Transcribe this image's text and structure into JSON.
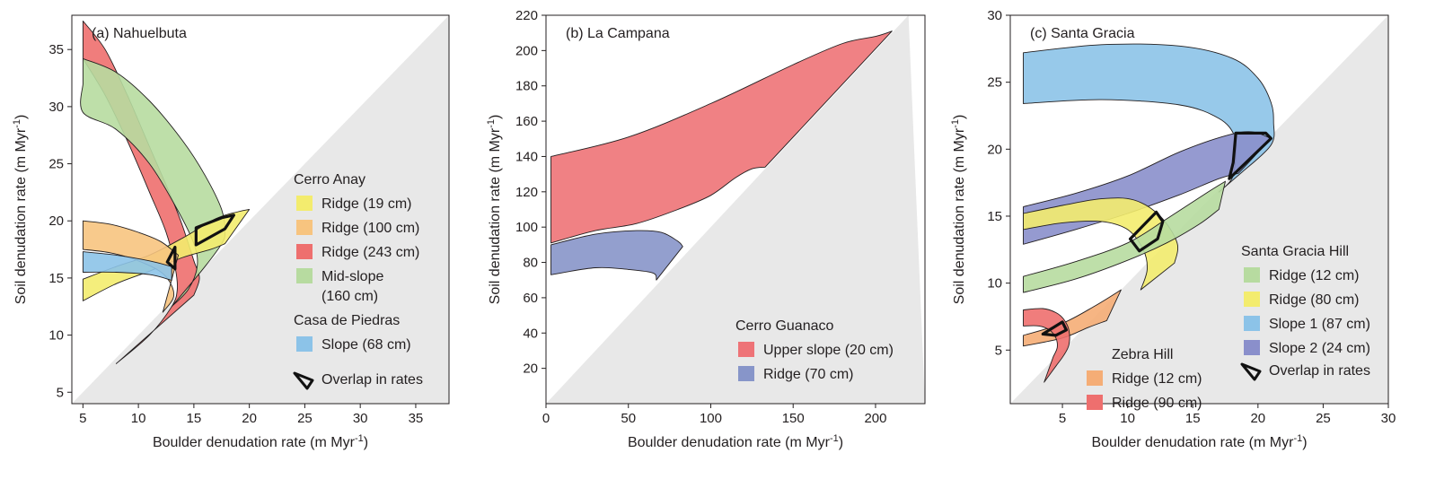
{
  "chart_data": [
    {
      "type": "area",
      "title": "(a) Nahuelbuta",
      "xlabel": "Boulder denudation rate (m Myr⁻¹)",
      "ylabel": "Soil denudation rate (m Myr⁻¹)",
      "xlim": [
        4,
        38
      ],
      "ylim": [
        4,
        38
      ],
      "xticks": [
        5,
        10,
        15,
        20,
        25,
        30,
        35
      ],
      "yticks": [
        5,
        10,
        15,
        20,
        25,
        30,
        35
      ],
      "legend_groups": [
        {
          "heading": "Cerro Anay",
          "items": [
            {
              "label": "Ridge (19 cm)",
              "color": "#f3ec6e"
            },
            {
              "label": "Ridge (100 cm)",
              "color": "#f7c47f"
            },
            {
              "label": "Ridge (243 cm)",
              "color": "#ee6f6e"
            },
            {
              "label": "Mid-slope",
              "label2": "(160 cm)",
              "color": "#b7dba0"
            }
          ]
        },
        {
          "heading": "Casa de Piedras",
          "items": [
            {
              "label": "Slope (68 cm)",
              "color": "#8cc3e8"
            }
          ]
        }
      ],
      "overlap_label": "Overlap in rates",
      "regions": [
        {
          "name": "Ridge (243 cm)",
          "color": "#ee6f6e",
          "upper": [
            [
              5,
              37.5
            ],
            [
              7,
              35
            ],
            [
              9,
              31
            ],
            [
              11,
              26.5
            ],
            [
              13,
              22
            ],
            [
              14,
              19.5
            ],
            [
              15,
              16.5
            ],
            [
              15.5,
              15
            ],
            [
              15,
              13.5
            ]
          ],
          "lower": [
            [
              5,
              34.2
            ],
            [
              7,
              31
            ],
            [
              9,
              27
            ],
            [
              11,
              22.5
            ],
            [
              12.5,
              19
            ],
            [
              13.3,
              16
            ],
            [
              13.5,
              14
            ],
            [
              13,
              12.5
            ],
            [
              11,
              10
            ],
            [
              8,
              7.5
            ]
          ]
        },
        {
          "name": "Mid-slope (160 cm)",
          "color": "#b7dba0",
          "upper": [
            [
              5,
              34.2
            ],
            [
              8,
              33
            ],
            [
              11,
              30.5
            ],
            [
              14,
              27
            ],
            [
              16,
              24
            ],
            [
              17.5,
              21
            ],
            [
              17.8,
              19
            ],
            [
              17.5,
              18
            ],
            [
              16,
              16
            ],
            [
              13,
              12.5
            ]
          ],
          "lower": [
            [
              5,
              32
            ],
            [
              5,
              29.5
            ],
            [
              8,
              28
            ],
            [
              11,
              25
            ],
            [
              13.5,
              21
            ],
            [
              15,
              18
            ],
            [
              15.3,
              16
            ],
            [
              14.5,
              14
            ],
            [
              13,
              12.5
            ]
          ]
        },
        {
          "name": "Ridge (19 cm)",
          "color": "#f3ec6e",
          "upper": [
            [
              5,
              14.9
            ],
            [
              8,
              16
            ],
            [
              11,
              17
            ],
            [
              14,
              18.5
            ],
            [
              17,
              20.2
            ],
            [
              19,
              20.8
            ],
            [
              20,
              21
            ]
          ],
          "lower": [
            [
              5,
              13
            ],
            [
              8,
              14.5
            ],
            [
              11,
              15.6
            ],
            [
              14,
              16.8
            ],
            [
              16.5,
              17.5
            ],
            [
              17.8,
              18
            ]
          ]
        },
        {
          "name": "Ridge (100 cm)",
          "color": "#f7c47f",
          "upper": [
            [
              5,
              20
            ],
            [
              7.5,
              19.7
            ],
            [
              10,
              19
            ],
            [
              12,
              18.2
            ],
            [
              13.6,
              17
            ]
          ],
          "lower": [
            [
              5,
              17.5
            ],
            [
              7.5,
              17.2
            ],
            [
              10,
              16.5
            ],
            [
              12.3,
              15.3
            ],
            [
              13.2,
              13.5
            ],
            [
              12.2,
              12
            ]
          ]
        },
        {
          "name": "Slope (68 cm)",
          "color": "#8cc3e8",
          "upper": [
            [
              5,
              17.3
            ],
            [
              8,
              17
            ],
            [
              11,
              16.5
            ],
            [
              13,
              16
            ]
          ],
          "lower": [
            [
              5,
              15.5
            ],
            [
              8,
              15.5
            ],
            [
              11,
              15.3
            ],
            [
              13,
              14.8
            ]
          ]
        }
      ],
      "overlaps": [
        [
          [
            15.2,
            17.9
          ],
          [
            17.8,
            19.3
          ],
          [
            18.6,
            20.5
          ],
          [
            17.6,
            20.3
          ],
          [
            15.2,
            19.4
          ]
        ],
        [
          [
            12.6,
            16.4
          ],
          [
            13.3,
            17.7
          ],
          [
            13.3,
            15.8
          ]
        ]
      ]
    },
    {
      "type": "area",
      "title": "(b) La Campana",
      "xlabel": "Boulder denudation rate (m Myr⁻¹)",
      "ylabel": "Soil denudation rate (m Myr⁻¹)",
      "xlim": [
        0,
        230
      ],
      "ylim": [
        0,
        220
      ],
      "xticks": [
        0,
        50,
        100,
        150,
        200
      ],
      "yticks": [
        20,
        40,
        60,
        80,
        100,
        120,
        140,
        160,
        180,
        200,
        220
      ],
      "legend_groups": [
        {
          "heading": "Cerro Guanaco",
          "items": [
            {
              "label": "Upper slope (20 cm)",
              "color": "#ee7377"
            },
            {
              "label": "Ridge (70 cm)",
              "color": "#8795c9"
            }
          ]
        }
      ],
      "regions": [
        {
          "name": "Upper slope (20 cm)",
          "color": "#ee7377",
          "upper": [
            [
              3,
              140
            ],
            [
              50,
              151
            ],
            [
              100,
              170
            ],
            [
              150,
              192
            ],
            [
              180,
              204
            ],
            [
              200,
              208
            ],
            [
              210,
              211
            ]
          ],
          "lower": [
            [
              3,
              91
            ],
            [
              30,
              98
            ],
            [
              55,
              102
            ],
            [
              80,
              110
            ],
            [
              100,
              118
            ],
            [
              115,
              128
            ],
            [
              125,
              133
            ],
            [
              133,
              134
            ]
          ]
        },
        {
          "name": "Ridge (70 cm)",
          "color": "#8795c9",
          "upper": [
            [
              3,
              90
            ],
            [
              30,
              96
            ],
            [
              55,
              98
            ],
            [
              70,
              97
            ],
            [
              80,
              92
            ],
            [
              83,
              89
            ]
          ],
          "lower": [
            [
              3,
              73
            ],
            [
              30,
              77
            ],
            [
              50,
              76
            ],
            [
              65,
              74
            ],
            [
              67,
              70
            ]
          ]
        }
      ]
    },
    {
      "type": "area",
      "title": "(c) Santa Gracia",
      "xlabel": "Boulder denudation rate (m Myr⁻¹)",
      "ylabel": "Soil denudation rate (m Myr⁻¹)",
      "xlim": [
        1,
        30
      ],
      "ylim": [
        1,
        30
      ],
      "xticks": [
        5,
        10,
        15,
        20,
        25,
        30
      ],
      "yticks": [
        5,
        10,
        15,
        20,
        25,
        30
      ],
      "legend_groups": [
        {
          "heading": "Zebra Hill",
          "items": [
            {
              "label": "Ridge (12 cm)",
              "color": "#f5ad76"
            },
            {
              "label": "Ridge (90 cm)",
              "color": "#ee6f6e"
            }
          ]
        },
        {
          "heading": "Santa Gracia Hill",
          "items": [
            {
              "label": "Ridge (12 cm)",
              "color": "#b7dba0"
            },
            {
              "label": "Ridge (80 cm)",
              "color": "#f3ec6e"
            },
            {
              "label": "Slope 1 (87 cm)",
              "color": "#8cc3e8"
            },
            {
              "label": "Slope 2 (24 cm)",
              "color": "#8a8fcb"
            }
          ]
        }
      ],
      "overlap_label": "Overlap in rates",
      "regions": [
        {
          "name": "Slope 1 (87 cm)",
          "color": "#8cc3e8",
          "upper": [
            [
              2,
              27.2
            ],
            [
              8,
              27.8
            ],
            [
              14,
              27.7
            ],
            [
              18,
              26.8
            ],
            [
              20,
              25.3
            ],
            [
              21,
              23.5
            ],
            [
              21.2,
              22
            ],
            [
              21,
              20.3
            ],
            [
              18.8,
              18.3
            ]
          ],
          "lower": [
            [
              2,
              23.4
            ],
            [
              8,
              23.7
            ],
            [
              14,
              23.3
            ],
            [
              17,
              22.3
            ],
            [
              18.2,
              21
            ],
            [
              18.3,
              19.5
            ],
            [
              18,
              17.8
            ],
            [
              17,
              16.8
            ]
          ]
        },
        {
          "name": "Slope 2 (24 cm)",
          "color": "#8a8fcb",
          "upper": [
            [
              2,
              15.7
            ],
            [
              6,
              16.7
            ],
            [
              10,
              18
            ],
            [
              14,
              19.8
            ],
            [
              17.5,
              21
            ],
            [
              19.5,
              21.3
            ],
            [
              21,
              20.8
            ]
          ],
          "lower": [
            [
              2,
              12.9
            ],
            [
              6,
              14
            ],
            [
              10,
              15.2
            ],
            [
              14,
              16.6
            ],
            [
              17,
              17.8
            ],
            [
              18.5,
              18.2
            ]
          ]
        },
        {
          "name": "Ridge (80 cm)",
          "color": "#f3ec6e",
          "upper": [
            [
              2,
              15.2
            ],
            [
              5,
              15.8
            ],
            [
              8,
              16.3
            ],
            [
              10.5,
              16.2
            ],
            [
              12.5,
              15
            ],
            [
              13.8,
              13
            ],
            [
              13.6,
              11.5
            ]
          ],
          "lower": [
            [
              2,
              14
            ],
            [
              5,
              14.5
            ],
            [
              8,
              14.6
            ],
            [
              10,
              14
            ],
            [
              11.2,
              12.5
            ],
            [
              11.5,
              11
            ],
            [
              11,
              9.5
            ]
          ]
        },
        {
          "name": "Ridge (12 cm)",
          "color": "#b7dba0",
          "upper": [
            [
              2,
              10.5
            ],
            [
              6,
              11.6
            ],
            [
              10,
              13
            ],
            [
              13,
              14.8
            ],
            [
              16,
              16.7
            ],
            [
              17.5,
              17.6
            ]
          ],
          "lower": [
            [
              2,
              9.3
            ],
            [
              6,
              10.3
            ],
            [
              10,
              11.7
            ],
            [
              13,
              13
            ],
            [
              15.5,
              14.4
            ],
            [
              17,
              15.5
            ]
          ]
        },
        {
          "name": "Zebra Ridge (12 cm)",
          "color": "#f5ad76",
          "upper": [
            [
              2,
              6.1
            ],
            [
              5,
              7
            ],
            [
              7.5,
              8.3
            ],
            [
              9.5,
              9.5
            ]
          ],
          "lower": [
            [
              2,
              5.3
            ],
            [
              5,
              5.9
            ],
            [
              7,
              6.7
            ],
            [
              8.4,
              7.2
            ]
          ]
        },
        {
          "name": "Zebra Ridge (90 cm)",
          "color": "#ee6f6e",
          "upper": [
            [
              2,
              8
            ],
            [
              3.5,
              8.1
            ],
            [
              4.5,
              7.8
            ],
            [
              5.1,
              7.3
            ],
            [
              5.5,
              6.5
            ],
            [
              5.5,
              5.4
            ],
            [
              5.1,
              4.6
            ],
            [
              4.5,
              3.8
            ],
            [
              3.6,
              2.6
            ]
          ],
          "lower": [
            [
              2,
              6.8
            ],
            [
              3.2,
              6.8
            ],
            [
              4,
              6.5
            ],
            [
              4.5,
              5.9
            ],
            [
              4.6,
              5.2
            ],
            [
              4.3,
              4.5
            ]
          ]
        }
      ],
      "overlaps": [
        [
          [
            17.8,
            17.8
          ],
          [
            21,
            20.8
          ],
          [
            20.6,
            21.2
          ],
          [
            19.3,
            21.2
          ],
          [
            18.3,
            21.2
          ],
          [
            18.1,
            19
          ]
        ],
        [
          [
            10.2,
            13.3
          ],
          [
            12.2,
            15.3
          ],
          [
            12.7,
            14.6
          ],
          [
            12.3,
            13.3
          ],
          [
            10.9,
            12.4
          ]
        ],
        [
          [
            3.5,
            6.2
          ],
          [
            5.0,
            7.1
          ],
          [
            5.3,
            6.5
          ],
          [
            4.5,
            6.1
          ]
        ]
      ]
    }
  ]
}
